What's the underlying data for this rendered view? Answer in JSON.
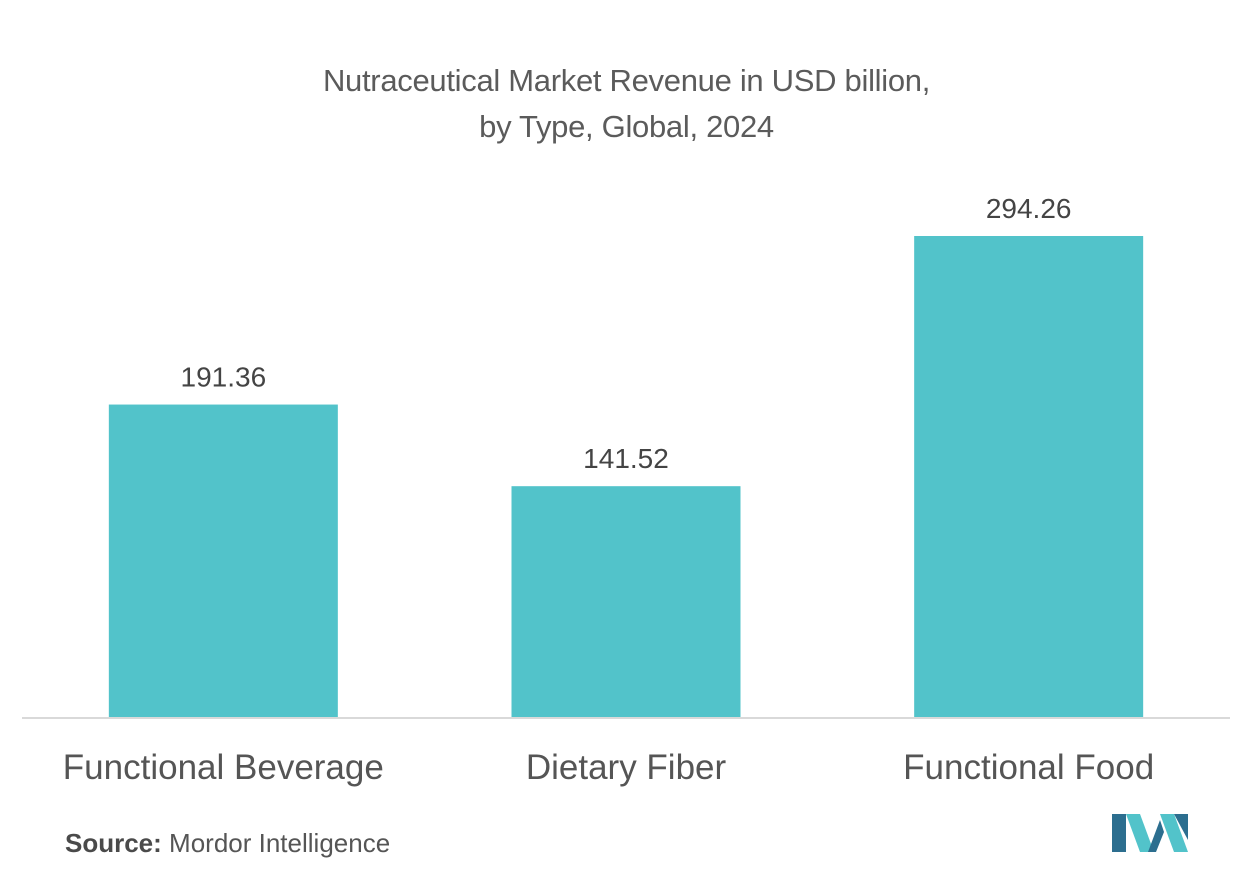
{
  "title": {
    "line1": "Nutraceutical  Market Revenue in USD billion,",
    "line2": "by Type, Global, 2024"
  },
  "chart_data": {
    "type": "bar",
    "categories": [
      "Functional Beverage",
      "Dietary Fiber",
      "Functional Food"
    ],
    "values": [
      191.36,
      141.52,
      294.26
    ],
    "data_labels": [
      "191.36",
      "141.52",
      "294.26"
    ],
    "title": "Nutraceutical  Market Revenue in USD billion, by Type, Global, 2024",
    "xlabel": "",
    "ylabel": "",
    "ylim": [
      0,
      294.26
    ],
    "grid": false,
    "legend": "none",
    "bar_color": "#52C3CA"
  },
  "source": {
    "label": "Source:",
    "text": "Mordor Intelligence"
  },
  "colors": {
    "bar": "#52C3CA",
    "axis": "#d9d9d9",
    "text": "#5b5b5b",
    "logo_dark": "#2c6e8f",
    "logo_light": "#52C3CA"
  },
  "logo": {
    "icon": "mordor-intelligence-logo-icon"
  }
}
